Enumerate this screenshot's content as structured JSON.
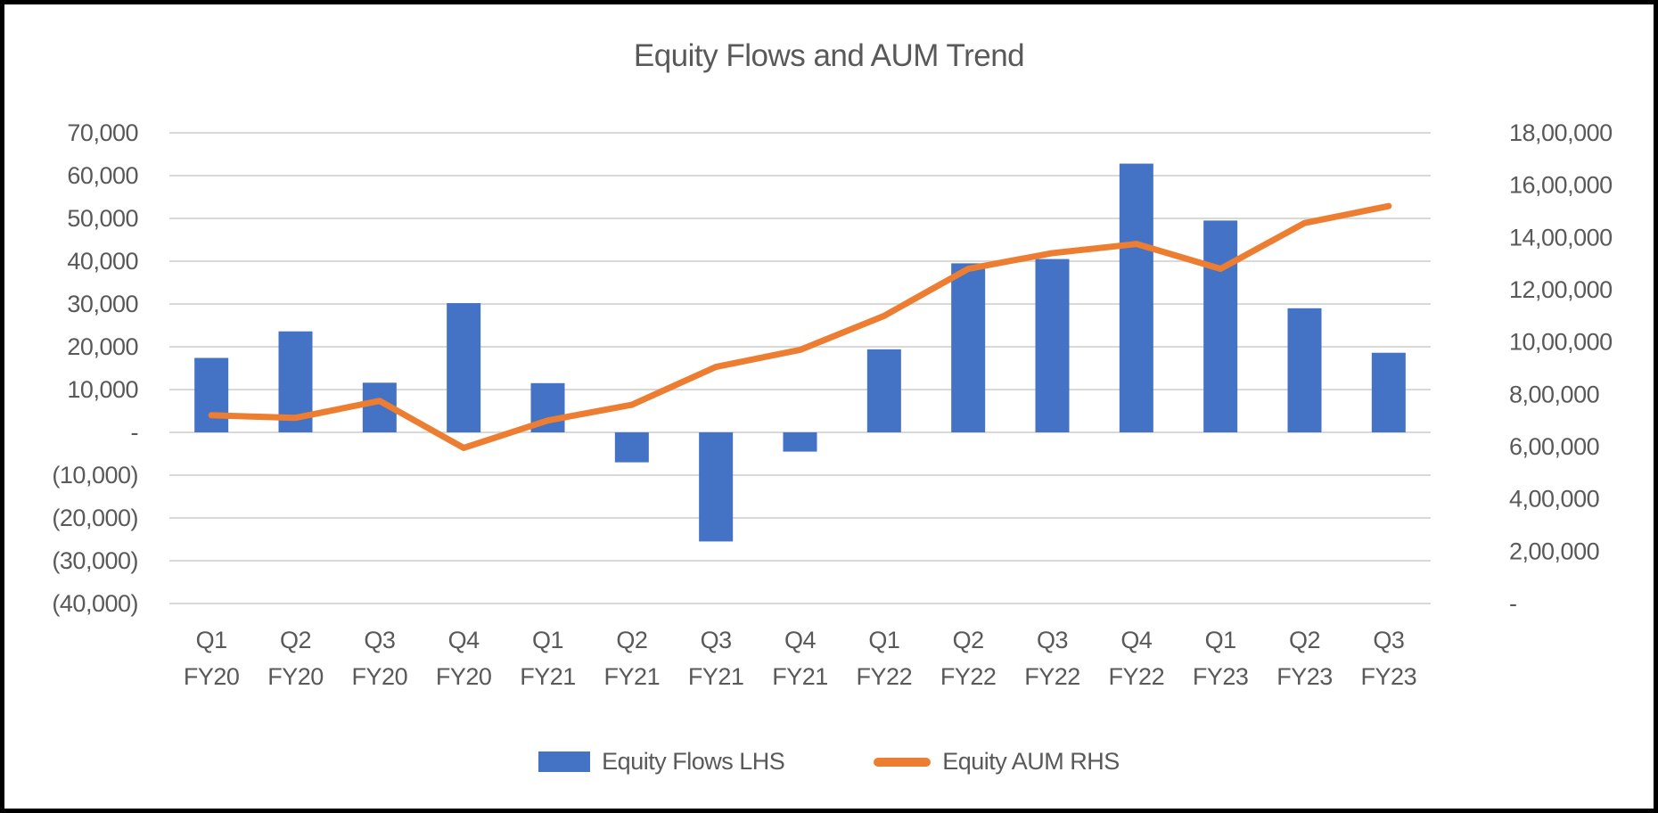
{
  "chart_data": {
    "type": "combo",
    "title": "Equity Flows and AUM Trend",
    "categories": [
      "Q1 FY20",
      "Q2 FY20",
      "Q3 FY20",
      "Q4 FY20",
      "Q1 FY21",
      "Q2 FY21",
      "Q3 FY21",
      "Q4 FY21",
      "Q1 FY22",
      "Q2 FY22",
      "Q3 FY22",
      "Q4 FY22",
      "Q1 FY23",
      "Q2 FY23",
      "Q3 FY23"
    ],
    "series": [
      {
        "name": "Equity Flows LHS",
        "type": "bar",
        "axis": "left",
        "color": "#4472C4",
        "values": [
          17400,
          23600,
          11600,
          30200,
          11500,
          -7000,
          -25500,
          -4500,
          19400,
          39500,
          40500,
          62800,
          49500,
          29000,
          18600
        ]
      },
      {
        "name": "Equity AUM RHS",
        "type": "line",
        "axis": "right",
        "color": "#ED7D31",
        "values": [
          720000,
          710000,
          775000,
          595000,
          700000,
          760000,
          905000,
          970000,
          1100000,
          1280000,
          1340000,
          1375000,
          1280000,
          1455000,
          1520000
        ]
      }
    ],
    "left_axis": {
      "min": -40000,
      "max": 70000,
      "step": 10000,
      "ticks": [
        "70,000",
        "60,000",
        "50,000",
        "40,000",
        "30,000",
        "20,000",
        "10,000",
        "-",
        "(10,000)",
        "(20,000)",
        "(30,000)",
        "(40,000)"
      ]
    },
    "right_axis": {
      "min": 0,
      "max": 1800000,
      "step": 200000,
      "ticks": [
        "18,00,000",
        "16,00,000",
        "14,00,000",
        "12,00,000",
        "10,00,000",
        "8,00,000",
        "6,00,000",
        "4,00,000",
        "2,00,000",
        "-"
      ]
    },
    "grid": true,
    "legend_position": "bottom"
  },
  "colors": {
    "bar": "#4472C4",
    "line": "#ED7D31",
    "grid": "#D9D9D9",
    "text": "#595959",
    "border": "#000000",
    "background": "#FFFFFF"
  }
}
